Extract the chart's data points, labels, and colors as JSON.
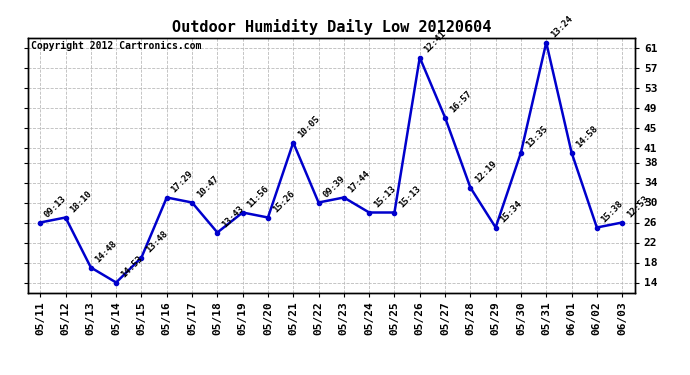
{
  "title": "Outdoor Humidity Daily Low 20120604",
  "copyright": "Copyright 2012 Cartronics.com",
  "line_color": "#0000cc",
  "bg_color": "#ffffff",
  "grid_color": "#bbbbbb",
  "dates": [
    "05/11",
    "05/12",
    "05/13",
    "05/14",
    "05/15",
    "05/16",
    "05/17",
    "05/18",
    "05/19",
    "05/20",
    "05/21",
    "05/22",
    "05/23",
    "05/24",
    "05/25",
    "05/26",
    "05/27",
    "05/28",
    "05/29",
    "05/30",
    "05/31",
    "06/01",
    "06/02",
    "06/03"
  ],
  "values": [
    26,
    27,
    17,
    14,
    19,
    31,
    30,
    24,
    28,
    27,
    42,
    30,
    31,
    28,
    28,
    59,
    47,
    33,
    25,
    40,
    62,
    40,
    25,
    26
  ],
  "labels": [
    "09:13",
    "18:10",
    "14:48",
    "14:53",
    "13:48",
    "17:29",
    "10:47",
    "13:43",
    "11:56",
    "15:26",
    "10:05",
    "09:39",
    "17:44",
    "15:13",
    "15:13",
    "12:41",
    "16:57",
    "12:19",
    "15:34",
    "13:35",
    "13:24",
    "14:58",
    "15:38",
    "12:53"
  ],
  "ylim": [
    12,
    63
  ],
  "yticks": [
    14,
    18,
    22,
    26,
    30,
    34,
    38,
    41,
    45,
    49,
    53,
    57,
    61
  ],
  "marker": "o",
  "marker_size": 3,
  "linewidth": 1.8,
  "title_fontsize": 11,
  "label_fontsize": 6.5,
  "tick_fontsize": 8,
  "copyright_fontsize": 7
}
